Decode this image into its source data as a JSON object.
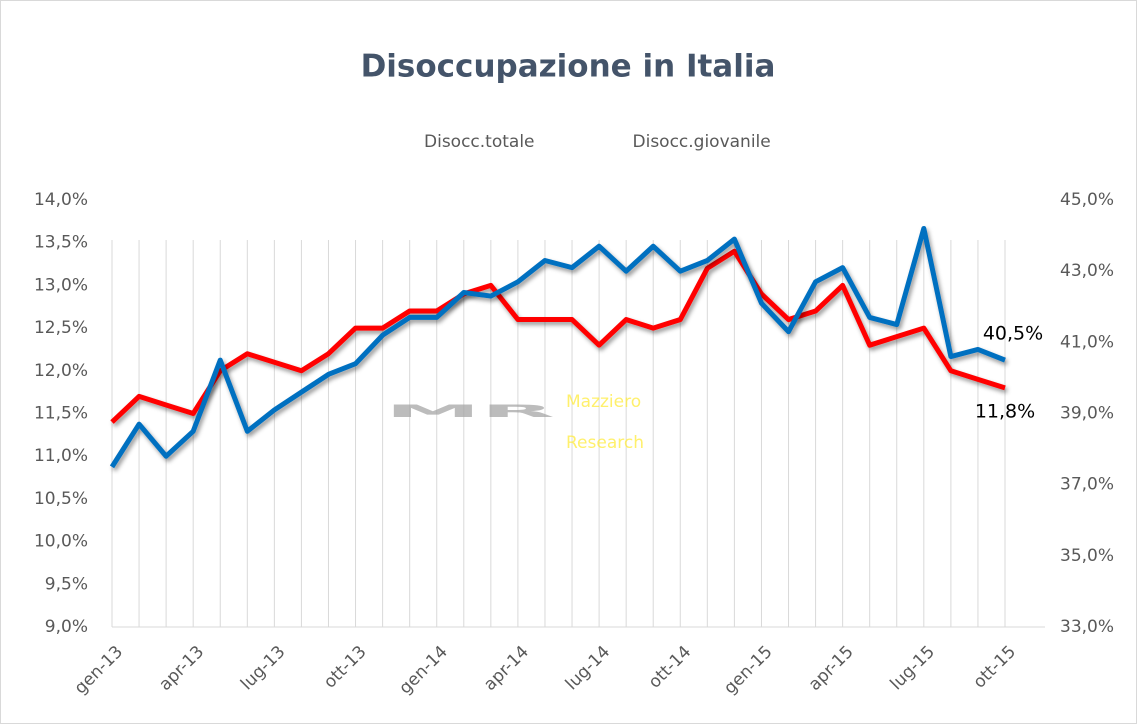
{
  "chart_data": {
    "type": "line",
    "title": "Disoccupazione in Italia",
    "watermark": {
      "mark": "MR",
      "line1": "Mazziero",
      "line2": "Research"
    },
    "categories": [
      "gen-13",
      null,
      null,
      "apr-13",
      null,
      null,
      "lug-13",
      null,
      null,
      "ott-13",
      null,
      null,
      "gen-14",
      null,
      null,
      "apr-14",
      null,
      null,
      "lug-14",
      null,
      null,
      "ott-14",
      null,
      null,
      "gen-15",
      null,
      null,
      "apr-15",
      null,
      null,
      "lug-15",
      null,
      null,
      "ott-15"
    ],
    "series": [
      {
        "name": "Disocc.totale",
        "color": "#ff0000",
        "axis": "y",
        "values": [
          11.4,
          11.7,
          11.6,
          11.5,
          12.0,
          12.2,
          12.1,
          12.0,
          12.2,
          12.5,
          12.5,
          12.7,
          12.7,
          12.9,
          13.0,
          12.6,
          12.6,
          12.6,
          12.3,
          12.6,
          12.5,
          12.6,
          13.2,
          13.4,
          12.9,
          12.6,
          12.7,
          13.0,
          12.3,
          12.4,
          12.5,
          12.0,
          11.9,
          11.8
        ],
        "value_labels": [
          null,
          null,
          null,
          null,
          null,
          null,
          null,
          null,
          null,
          null,
          null,
          null,
          null,
          null,
          null,
          null,
          null,
          null,
          null,
          null,
          null,
          null,
          null,
          null,
          null,
          null,
          null,
          null,
          null,
          null,
          null,
          null,
          null,
          "11,8%"
        ]
      },
      {
        "name": "Disocc.giovanile",
        "color": "#0070c0",
        "axis": "y2",
        "values": [
          37.5,
          38.7,
          37.8,
          38.5,
          40.5,
          38.5,
          39.1,
          39.6,
          40.1,
          40.4,
          41.2,
          41.7,
          41.7,
          42.4,
          42.3,
          42.7,
          43.3,
          43.1,
          43.7,
          43.0,
          43.7,
          43.0,
          43.3,
          43.9,
          42.1,
          41.3,
          42.7,
          43.1,
          41.7,
          41.5,
          44.2,
          40.6,
          40.8,
          40.5
        ],
        "value_labels": [
          null,
          null,
          null,
          null,
          null,
          null,
          null,
          null,
          null,
          null,
          null,
          null,
          null,
          null,
          null,
          null,
          null,
          null,
          null,
          null,
          null,
          null,
          null,
          null,
          null,
          null,
          null,
          null,
          null,
          null,
          null,
          null,
          null,
          "40,5%"
        ]
      }
    ],
    "ylim": [
      9.0,
      14.0
    ],
    "yticks": [
      {
        "value": 9.0,
        "label": "9,0%"
      },
      {
        "value": 9.5,
        "label": "9,5%"
      },
      {
        "value": 10.0,
        "label": "10,0%"
      },
      {
        "value": 10.5,
        "label": "10,5%"
      },
      {
        "value": 11.0,
        "label": "11,0%"
      },
      {
        "value": 11.5,
        "label": "11,5%"
      },
      {
        "value": 12.0,
        "label": "12,0%"
      },
      {
        "value": 12.5,
        "label": "12,5%"
      },
      {
        "value": 13.0,
        "label": "13,0%"
      },
      {
        "value": 13.5,
        "label": "13,5%"
      },
      {
        "value": 14.0,
        "label": "14,0%"
      }
    ],
    "y2lim": [
      33.0,
      45.0
    ],
    "y2ticks": [
      {
        "value": 33.0,
        "label": "33,0%"
      },
      {
        "value": 35.0,
        "label": "35,0%"
      },
      {
        "value": 37.0,
        "label": "37,0%"
      },
      {
        "value": 39.0,
        "label": "39,0%"
      },
      {
        "value": 41.0,
        "label": "41,0%"
      },
      {
        "value": 43.0,
        "label": "43,0%"
      },
      {
        "value": 45.0,
        "label": "45,0%"
      }
    ],
    "grid": true,
    "legend": "top"
  }
}
